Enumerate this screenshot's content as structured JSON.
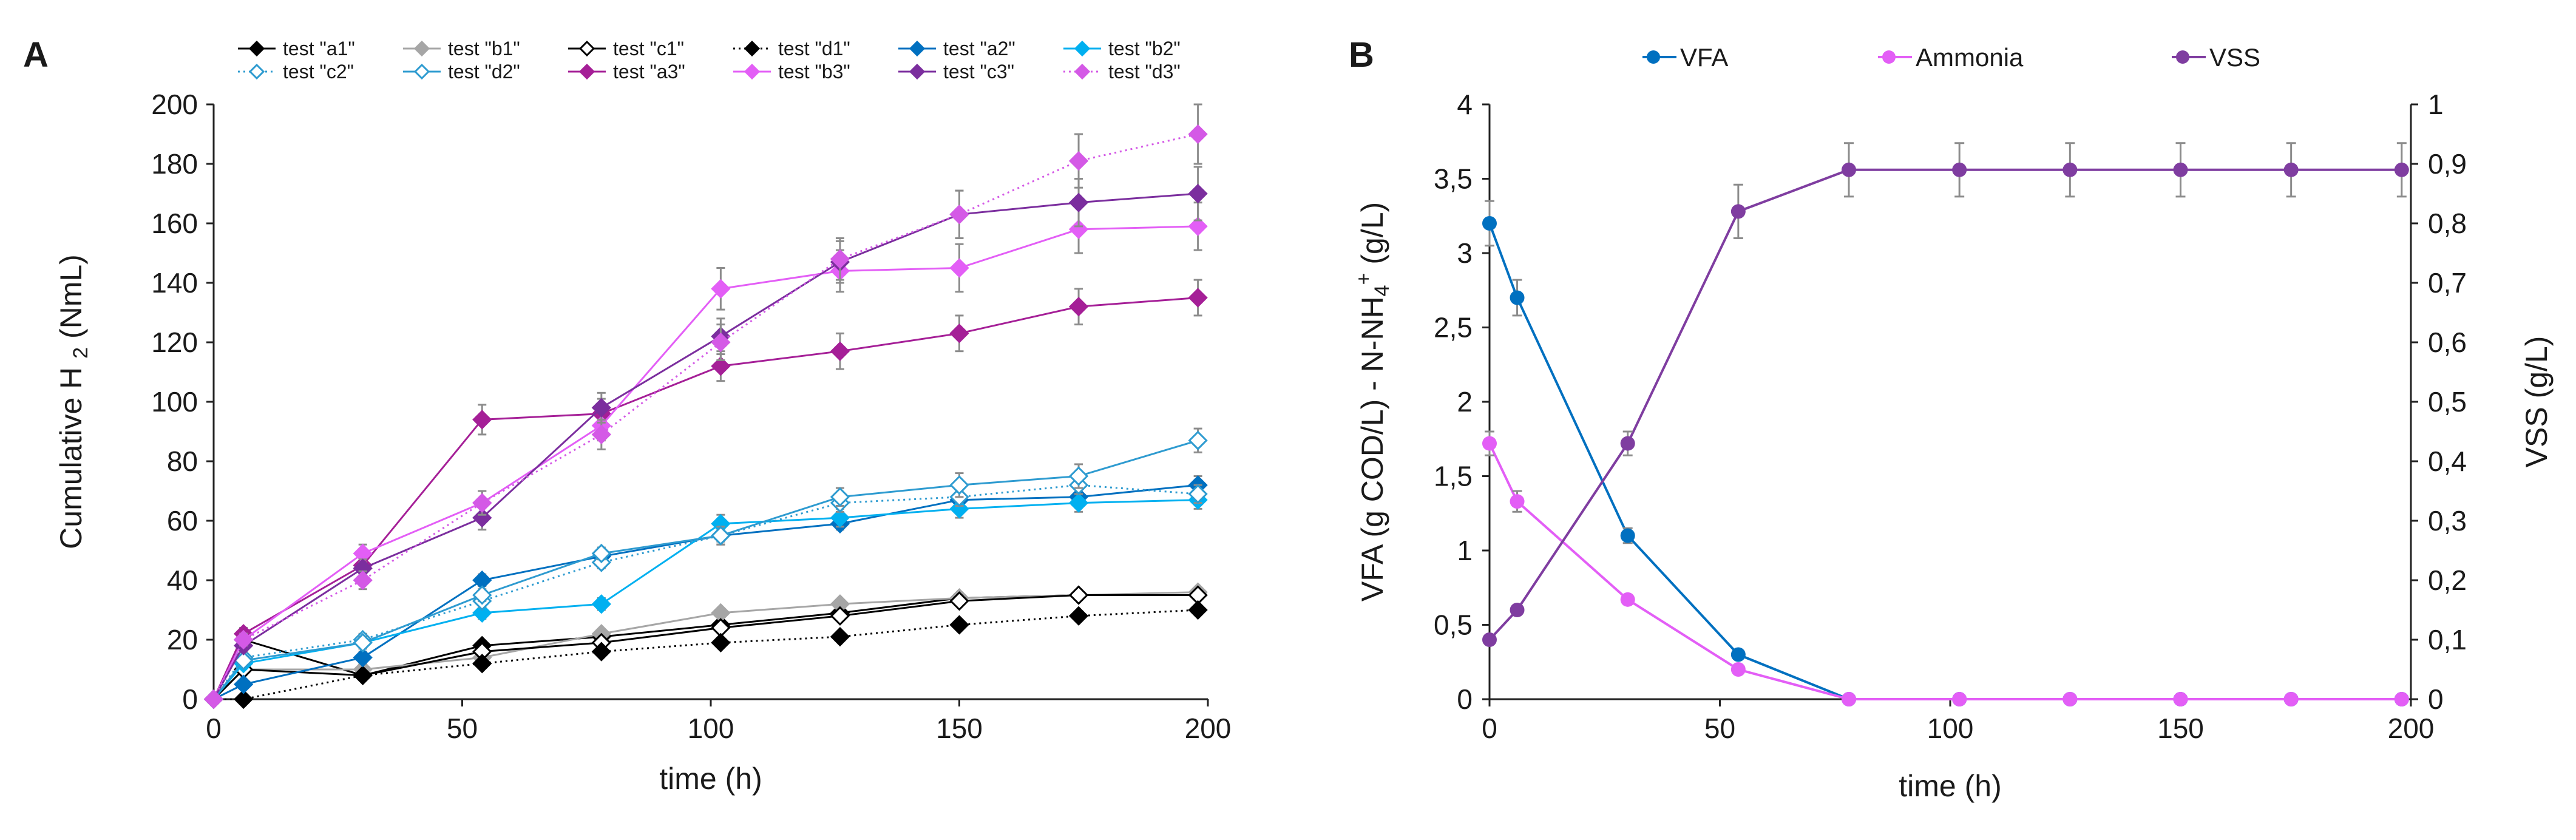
{
  "colors": {
    "a1": "#000000",
    "b1": "#a6a6a6",
    "c1": "#000000",
    "d1": "#000000",
    "a2": "#0070c0",
    "b2": "#00b0f0",
    "c2": "#2e9bd0",
    "d2": "#2e9bd0",
    "a3": "#a51f97",
    "b3": "#e35ef6",
    "c3": "#7b2e9e",
    "d3": "#d459e6",
    "vfa": "#0070c0",
    "ammonia": "#e35ef6",
    "vss": "#7f3da0"
  },
  "chart_data": [
    {
      "panel": "A",
      "type": "line",
      "ylabel": "Cumulative H",
      "ylabel_sub": "2",
      "ylabel_unit": "(NmL)",
      "xlabel": "time (h)",
      "xlim": [
        0,
        200
      ],
      "ylim": [
        0,
        200
      ],
      "xticks": [
        0,
        50,
        100,
        150,
        200
      ],
      "yticks": [
        0,
        20,
        40,
        60,
        80,
        100,
        120,
        140,
        160,
        180,
        200
      ],
      "x": [
        0,
        6,
        30,
        54,
        78,
        102,
        126,
        150,
        174,
        198
      ],
      "legend_position": "top",
      "series": [
        {
          "key": "a1",
          "name": "test \"a1\"",
          "marker": "diamond-filled",
          "dash": "solid",
          "values": [
            0,
            20,
            8,
            18,
            21,
            25,
            29,
            34,
            35,
            35
          ],
          "err": [
            0,
            0,
            0,
            0,
            0,
            0,
            0,
            0,
            0,
            0
          ]
        },
        {
          "key": "b1",
          "name": "test \"b1\"",
          "marker": "diamond-filled",
          "dash": "solid",
          "values": [
            0,
            10,
            10,
            14,
            22,
            29,
            32,
            34,
            35,
            36
          ],
          "err": [
            0,
            0,
            0,
            0,
            0,
            0,
            0,
            0,
            0,
            0
          ]
        },
        {
          "key": "c1",
          "name": "test \"c1\"",
          "marker": "diamond-open",
          "dash": "solid",
          "values": [
            0,
            10,
            8,
            16,
            19,
            24,
            28,
            33,
            35,
            35
          ],
          "err": [
            0,
            0,
            0,
            0,
            0,
            0,
            0,
            0,
            0,
            0
          ]
        },
        {
          "key": "d1",
          "name": "test \"d1\"",
          "marker": "diamond-filled",
          "dash": "dotted",
          "values": [
            0,
            0,
            8,
            12,
            16,
            19,
            21,
            25,
            28,
            30
          ],
          "err": [
            0,
            0,
            0,
            0,
            0,
            0,
            0,
            0,
            0,
            0
          ]
        },
        {
          "key": "a2",
          "name": "test \"a2\"",
          "marker": "diamond-filled",
          "dash": "solid",
          "values": [
            0,
            5,
            14,
            40,
            48,
            55,
            59,
            67,
            68,
            72
          ],
          "err": [
            0,
            1,
            2,
            2,
            2,
            2,
            2,
            3,
            3,
            3
          ]
        },
        {
          "key": "b2",
          "name": "test \"b2\"",
          "marker": "diamond-filled",
          "dash": "solid",
          "values": [
            0,
            12,
            19,
            29,
            32,
            59,
            61,
            64,
            66,
            67
          ],
          "err": [
            0,
            1,
            2,
            2,
            2,
            3,
            3,
            3,
            3,
            3
          ]
        },
        {
          "key": "c2",
          "name": "test \"c2\"",
          "marker": "diamond-open",
          "dash": "dotted",
          "values": [
            0,
            14,
            20,
            33,
            46,
            55,
            66,
            68,
            72,
            69
          ],
          "err": [
            0,
            1,
            2,
            2,
            2,
            3,
            3,
            3,
            3,
            3
          ]
        },
        {
          "key": "d2",
          "name": "test \"d2\"",
          "marker": "diamond-open",
          "dash": "solid",
          "values": [
            0,
            13,
            19,
            35,
            49,
            55,
            68,
            72,
            75,
            87
          ],
          "err": [
            0,
            1,
            2,
            2,
            2,
            3,
            3,
            4,
            4,
            4
          ]
        },
        {
          "key": "a3",
          "name": "test \"a3\"",
          "marker": "diamond-filled",
          "dash": "solid",
          "values": [
            0,
            22,
            45,
            94,
            96,
            112,
            117,
            123,
            132,
            135
          ],
          "err": [
            0,
            2,
            3,
            5,
            5,
            5,
            6,
            6,
            6,
            6
          ]
        },
        {
          "key": "b3",
          "name": "test \"b3\"",
          "marker": "diamond-filled",
          "dash": "solid",
          "values": [
            0,
            20,
            49,
            66,
            92,
            138,
            144,
            145,
            158,
            159
          ],
          "err": [
            0,
            2,
            3,
            4,
            5,
            7,
            7,
            8,
            8,
            8
          ]
        },
        {
          "key": "c3",
          "name": "test \"c3\"",
          "marker": "diamond-filled",
          "dash": "solid",
          "values": [
            0,
            18,
            44,
            61,
            98,
            122,
            147,
            163,
            167,
            170
          ],
          "err": [
            0,
            2,
            3,
            4,
            5,
            6,
            7,
            8,
            8,
            9
          ]
        },
        {
          "key": "d3",
          "name": "test \"d3\"",
          "marker": "diamond-filled",
          "dash": "dotted",
          "values": [
            0,
            20,
            40,
            66,
            89,
            120,
            148,
            163,
            181,
            190
          ],
          "err": [
            0,
            2,
            3,
            4,
            5,
            6,
            7,
            8,
            9,
            10
          ]
        }
      ]
    },
    {
      "panel": "B",
      "type": "line",
      "ylabel_left": "VFA (g COD/L) - N-NH",
      "ylabel_left_sub": "4",
      "ylabel_left_sup": "+",
      "ylabel_left_unit": " (g/L)",
      "ylabel_right": "VSS (g/L)",
      "xlabel": "time (h)",
      "xlim": [
        0,
        200
      ],
      "ylim_left": [
        0,
        4
      ],
      "ylim_right": [
        0,
        1
      ],
      "xticks": [
        0,
        50,
        100,
        150,
        200
      ],
      "yticks_left": [
        "0",
        "0,5",
        "1",
        "1,5",
        "2",
        "2,5",
        "3",
        "3,5",
        "4"
      ],
      "yticks_right": [
        "0",
        "0,1",
        "0,2",
        "0,3",
        "0,4",
        "0,5",
        "0,6",
        "0,7",
        "0,8",
        "0,9",
        "1"
      ],
      "x": [
        0,
        6,
        30,
        54,
        78,
        102,
        126,
        150,
        174,
        198
      ],
      "legend_position": "top",
      "series": [
        {
          "key": "vfa",
          "name": "VFA",
          "axis": "left",
          "values": [
            3.2,
            2.7,
            1.1,
            0.3,
            0,
            0,
            0,
            0,
            0,
            0
          ],
          "err": [
            0.15,
            0.12,
            0.05,
            0.02,
            0,
            0,
            0,
            0,
            0,
            0
          ]
        },
        {
          "key": "ammonia",
          "name": "Ammonia",
          "axis": "left",
          "values": [
            1.72,
            1.33,
            0.67,
            0.2,
            0,
            0,
            0,
            0,
            0,
            0
          ],
          "err": [
            0.08,
            0.07,
            0.03,
            0.02,
            0,
            0,
            0,
            0,
            0,
            0
          ]
        },
        {
          "key": "vss",
          "name": "VSS",
          "axis": "right",
          "values": [
            0.1,
            0.15,
            0.43,
            0.82,
            0.89,
            0.89,
            0.89,
            0.89,
            0.89,
            0.89
          ],
          "err": [
            0,
            0,
            0.02,
            0.045,
            0.045,
            0.045,
            0.045,
            0.045,
            0.045,
            0.045
          ]
        }
      ]
    }
  ]
}
